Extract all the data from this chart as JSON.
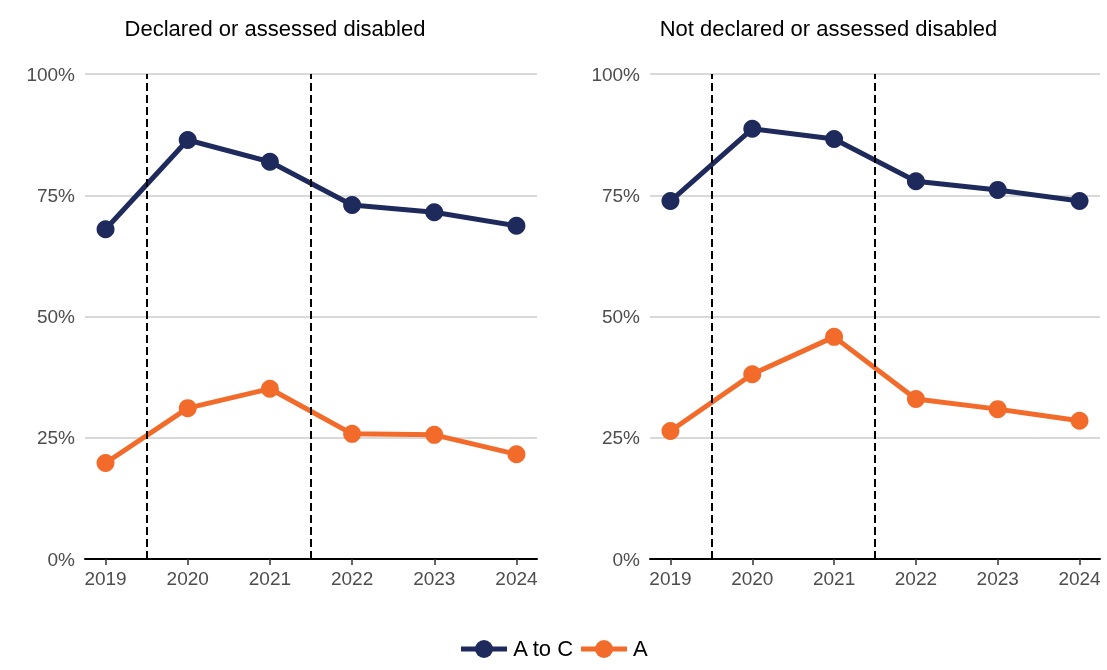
{
  "chart_data": [
    {
      "type": "line",
      "title": "Declared or assessed disabled",
      "x": [
        2019,
        2020,
        2021,
        2022,
        2023,
        2024
      ],
      "xlim": [
        2018.75,
        2024.25
      ],
      "xticks": [
        2019,
        2020,
        2021,
        2022,
        2023,
        2024
      ],
      "ylim": [
        0,
        100
      ],
      "yticks": [
        {
          "value": 0,
          "label": "0%"
        },
        {
          "value": 25,
          "label": "25%"
        },
        {
          "value": 50,
          "label": "50%"
        },
        {
          "value": 75,
          "label": "75%"
        },
        {
          "value": 100,
          "label": "100%"
        }
      ],
      "grid": "y",
      "marker": "circle",
      "line_style": "solid",
      "legend": "bottom",
      "ref_lines": [
        {
          "axis": "x",
          "value": 2019.5,
          "label": null,
          "color": "#000000",
          "line_style": "dashed"
        },
        {
          "axis": "x",
          "value": 2021.5,
          "label": null,
          "color": "#000000",
          "line_style": "dashed"
        }
      ],
      "series": [
        {
          "name": "A to C",
          "color": "#1f2a5c",
          "values": [
            68.0,
            86.4,
            81.9,
            73.0,
            71.5,
            68.7
          ]
        },
        {
          "name": "A",
          "color": "#f26b2a",
          "values": [
            19.8,
            31.1,
            35.1,
            25.8,
            25.6,
            21.6
          ]
        }
      ]
    },
    {
      "type": "line",
      "title": "Not declared or assessed disabled",
      "x": [
        2019,
        2020,
        2021,
        2022,
        2023,
        2024
      ],
      "xlim": [
        2018.75,
        2024.25
      ],
      "xticks": [
        2019,
        2020,
        2021,
        2022,
        2023,
        2024
      ],
      "ylim": [
        0,
        100
      ],
      "yticks": [
        {
          "value": 0,
          "label": "0%"
        },
        {
          "value": 25,
          "label": "25%"
        },
        {
          "value": 50,
          "label": "50%"
        },
        {
          "value": 75,
          "label": "75%"
        },
        {
          "value": 100,
          "label": "100%"
        }
      ],
      "grid": "y",
      "marker": "circle",
      "line_style": "solid",
      "legend": "bottom",
      "ref_lines": [
        {
          "axis": "x",
          "value": 2019.5,
          "label": null,
          "color": "#000000",
          "line_style": "dashed"
        },
        {
          "axis": "x",
          "value": 2021.5,
          "label": null,
          "color": "#000000",
          "line_style": "dashed"
        }
      ],
      "series": [
        {
          "name": "A to C",
          "color": "#1f2a5c",
          "values": [
            73.8,
            88.7,
            86.6,
            77.9,
            76.1,
            73.8
          ]
        },
        {
          "name": "A",
          "color": "#f26b2a",
          "values": [
            26.4,
            38.1,
            45.8,
            33.0,
            30.9,
            28.5
          ]
        }
      ]
    }
  ]
}
